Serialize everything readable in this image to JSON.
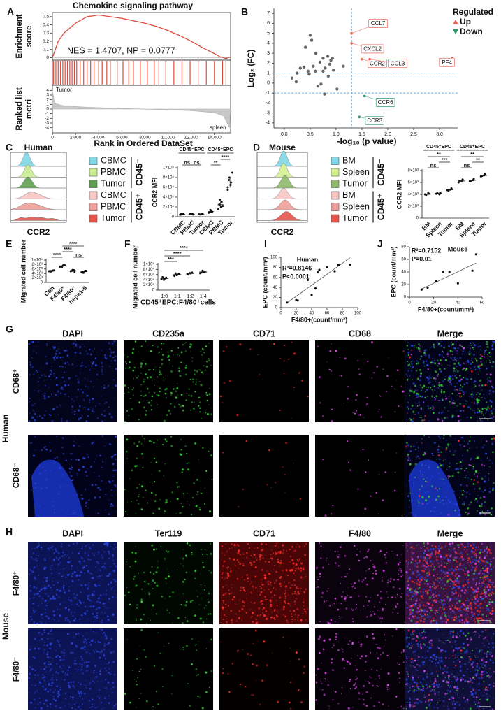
{
  "chart_data": [
    {
      "type": "gsea",
      "panel": "A",
      "title": "Chemokine signaling pathway",
      "ylabel": [
        "Enrichment",
        "score"
      ],
      "ylabel2": [
        "Ranked list",
        "metri"
      ],
      "xlabel": "Rank in Ordered DataSet",
      "annotation": "NES = 1.4707, NP = 0.0777",
      "color": "#e04a3a",
      "x": [
        0,
        500,
        1000,
        1500,
        2000,
        3000,
        4000,
        5000,
        6000,
        7000,
        8000,
        9000,
        10000,
        11000,
        12000,
        13000,
        14000,
        14500,
        15000,
        15400
      ],
      "values": [
        0,
        0.2,
        0.3,
        0.36,
        0.42,
        0.5,
        0.52,
        0.5,
        0.48,
        0.45,
        0.42,
        0.38,
        0.33,
        0.27,
        0.2,
        0.12,
        0.05,
        0.01,
        -0.01,
        0.01
      ],
      "hits": [
        100,
        300,
        500,
        700,
        900,
        1100,
        1300,
        1500,
        1700,
        1900,
        2100,
        2400,
        2700,
        3000,
        3300,
        3600,
        4000,
        4300,
        4700,
        5000,
        5600,
        6100,
        6600,
        7000,
        7600,
        8200,
        8800,
        9200,
        9800,
        10500,
        11200,
        11900,
        12600,
        13300,
        14000,
        14700,
        15000
      ],
      "metric_x": [
        0,
        200,
        1000,
        3000,
        6000,
        9000,
        12000,
        14000,
        14800,
        15300,
        15400
      ],
      "metric": [
        4,
        1.2,
        0.7,
        0.4,
        0.15,
        -0.1,
        -0.35,
        -0.8,
        -1.5,
        -4,
        0
      ],
      "top_label": "Tumor",
      "bottom_label": "spleen",
      "xlim": [
        0,
        15400
      ],
      "xticks": [
        0,
        {
          "value": 2000,
          "label": "2,000"
        },
        {
          "value": 4000,
          "label": "4,000"
        },
        {
          "value": 6000,
          "label": "6,000"
        },
        {
          "value": 8000,
          "label": "8,000"
        },
        {
          "value": 10000,
          "label": "10,000"
        },
        {
          "value": 12000,
          "label": "12,000"
        },
        {
          "value": 14000,
          "label": "14,000"
        }
      ],
      "ylim": [
        -0.03,
        0.55
      ],
      "yticks": [
        0,
        0.1,
        0.2,
        0.3,
        0.4,
        0.5
      ],
      "y2lim": [
        -4.8,
        4.8
      ],
      "y2ticks": [
        4,
        3,
        2,
        1,
        0,
        -1,
        -2,
        -3,
        -4
      ]
    },
    {
      "type": "volcano",
      "panel": "B",
      "xlabel": "-log₁₀ (p value)",
      "ylabel": "Log₂ (FC)",
      "legend_title": "Regulated",
      "xlim": [
        -0.2,
        3.35
      ],
      "xticks": [
        {
          "value": 0,
          "label": "0.0"
        },
        0.5,
        {
          "value": 1,
          "label": "1.0"
        },
        1.5,
        {
          "value": 2,
          "label": "2.0"
        },
        2.5,
        {
          "value": 3,
          "label": "3.0"
        }
      ],
      "ylim": [
        -4.5,
        7.5
      ],
      "yticks": [
        -4,
        -3,
        -2,
        -1,
        0,
        1,
        2,
        3,
        4,
        5,
        6,
        7
      ],
      "vline": 1.3,
      "hlines": [
        1,
        -1
      ],
      "other": {
        "color": "#666666",
        "x": [
          0.15,
          0.23,
          0.25,
          0.41,
          0.5,
          0.53,
          0.31,
          0.38,
          0.46,
          0.56,
          0.61,
          0.69,
          0.75,
          0.79,
          0.88,
          0.85,
          0.71,
          0.65,
          0.78,
          0.9,
          0.84,
          0.93,
          0.95,
          0.6,
          0.48,
          1.14,
          0.75,
          1.02
        ],
        "y": [
          0.5,
          0.13,
          1.0,
          3.6,
          4.8,
          4.3,
          1.5,
          1.6,
          1.2,
          1.7,
          3.0,
          2.1,
          2.5,
          1.5,
          1.9,
          0.7,
          -0.1,
          -0.3,
          -1.1,
          2.3,
          2.7,
          2.5,
          1.3,
          1.2,
          0.9,
          1.7,
          1.2,
          -0.6
        ]
      },
      "series": [
        {
          "name": "Up",
          "color": "#e8675a",
          "x": [
            1.3,
            1.3,
            1.5,
            1.65,
            3.25
          ],
          "y": [
            5.0,
            4.0,
            2.4,
            2.4,
            2.5
          ],
          "labels": [
            "CCL7",
            "CXCL2",
            "CCR2",
            "CCL3",
            "PF4"
          ]
        },
        {
          "name": "Down",
          "color": "#2e9a6a",
          "x": [
            1.55,
            1.45
          ],
          "y": [
            -1.3,
            -3.4
          ],
          "labels": [
            "CCR6",
            "CCR3"
          ]
        }
      ]
    },
    {
      "type": "ridge",
      "panel": "C",
      "title": "Human",
      "xlabel": "CCR2",
      "brackets": [
        "CD45⁻",
        "CD45⁺"
      ],
      "legend": [
        {
          "name": "CBMC",
          "color": "#7fd6e6"
        },
        {
          "name": "PBMC",
          "color": "#c8ec8f"
        },
        {
          "name": "Tumor",
          "color": "#5e9e50"
        },
        {
          "name": "CBMC",
          "color": "#f6c7c3"
        },
        {
          "name": "PBMC",
          "color": "#f0a09a"
        },
        {
          "name": "Tumor",
          "color": "#e5534b"
        }
      ]
    },
    {
      "type": "dot",
      "ylabel": "CCR2 MFI",
      "group_labels": [
        "CD45⁻EPC",
        "CD45⁺EPC"
      ],
      "categories": [
        "CBMC",
        "PBMC",
        "Tumor",
        "CBMC",
        "PBMC",
        "Tumor"
      ],
      "values": [
        [
          4000,
          5000,
          6000,
          5500,
          4500
        ],
        [
          5000,
          6000,
          4500,
          5500
        ],
        [
          5000,
          6000,
          5500,
          4500
        ],
        [
          8000,
          12000,
          10000,
          9000,
          14000
        ],
        [
          15000,
          20000,
          30000,
          25000,
          35000,
          22000
        ],
        [
          55000,
          65000,
          70000,
          75000,
          80000,
          90000,
          60000
        ]
      ],
      "sig": [
        "ns",
        "ns",
        "**",
        "****"
      ],
      "ylim": [
        0,
        100000
      ],
      "yticks": [
        0,
        {
          "value": 20000,
          "label": "2×10⁴"
        },
        {
          "value": 40000,
          "label": "4×10⁴"
        },
        {
          "value": 60000,
          "label": "6×10⁴"
        },
        {
          "value": 80000,
          "label": "8×10⁴"
        },
        {
          "value": 100000,
          "label": "1×10⁵"
        }
      ]
    },
    {
      "type": "ridge",
      "panel": "D",
      "title": "Mouse",
      "xlabel": "CCR2",
      "brackets": [
        "CD45⁻",
        "CD45⁺"
      ],
      "legend": [
        {
          "name": "BM",
          "color": "#7fd6e6"
        },
        {
          "name": "Spleen",
          "color": "#d4f08f"
        },
        {
          "name": "Tumor",
          "color": "#8fb86c"
        },
        {
          "name": "BM",
          "color": "#f6c7c3"
        },
        {
          "name": "Spleen",
          "color": "#f0a09a"
        },
        {
          "name": "Tumor",
          "color": "#e5534b"
        }
      ]
    },
    {
      "type": "dot",
      "ylabel": "CCR2 MFI",
      "group_labels": [
        "CD45⁻EPC",
        "CD45⁺EPC"
      ],
      "categories": [
        "BM",
        "Spleen",
        "Tumor",
        "BM",
        "Spleen",
        "Tumor"
      ],
      "values": [
        [
          4000,
          4200,
          4100,
          3900
        ],
        [
          4100,
          4000,
          4300,
          4200
        ],
        [
          4700,
          4800,
          5000,
          4600
        ],
        [
          6000,
          6300,
          6500,
          6200
        ],
        [
          6200,
          6400,
          6600,
          6300
        ],
        [
          7000,
          7200,
          7400,
          7100
        ]
      ],
      "sig": [
        "ns",
        "**",
        "***",
        "ns",
        "**",
        "**"
      ],
      "ylim": [
        0,
        8000
      ],
      "yticks": [
        0,
        {
          "value": 2000,
          "label": "2×10³"
        },
        {
          "value": 4000,
          "label": "4×10³"
        },
        {
          "value": 6000,
          "label": "6×10³"
        },
        {
          "value": 8000,
          "label": "8×10³"
        }
      ]
    },
    {
      "type": "dot",
      "panel": "E",
      "ylabel": "Migrated cell number",
      "categories": [
        "Con",
        "F4/80⁺",
        "F4/80⁻",
        "hepa1-6"
      ],
      "values": [
        [
          5000,
          5200,
          5300,
          5100,
          4900,
          5400
        ],
        [
          7000,
          7500,
          8000,
          7200,
          6800,
          7600
        ],
        [
          5000,
          5500,
          4800,
          5200,
          5600
        ],
        [
          4500,
          5000,
          5200,
          4800,
          4300,
          5100
        ]
      ],
      "sig": [
        "****",
        "****",
        "****",
        "ns"
      ],
      "ylim": [
        0,
        10000
      ],
      "yticks": [
        0,
        {
          "value": 2000,
          "label": "2×10³"
        },
        {
          "value": 4000,
          "label": "4×10³"
        },
        {
          "value": 6000,
          "label": "6×10³"
        },
        {
          "value": 8000,
          "label": "8×10³"
        },
        {
          "value": 10000,
          "label": "1×10⁴"
        }
      ]
    },
    {
      "type": "dot",
      "panel": "F",
      "ylabel": "Migrated cell number",
      "xlabel": "CD45⁺EPC:F4/80⁺cells",
      "categories": [
        "1:0",
        "1:1",
        "1:2",
        "1:4"
      ],
      "values": [
        [
          42000,
          45000,
          48000,
          50000,
          40000
        ],
        [
          55000,
          60000,
          62000,
          65000,
          58000
        ],
        [
          62000,
          65000,
          68000,
          60000,
          66000
        ],
        [
          65000,
          70000,
          72000,
          68000,
          75000
        ]
      ],
      "sig": [
        "***",
        "****",
        "****"
      ],
      "ylim": [
        0,
        100000
      ],
      "yticks": [
        0,
        {
          "value": 20000,
          "label": "2×10⁴"
        },
        {
          "value": 40000,
          "label": "4×10⁴"
        },
        {
          "value": 60000,
          "label": "6×10⁴"
        },
        {
          "value": 80000,
          "label": "8×10⁴"
        },
        {
          "value": 100000,
          "label": "1×10⁵"
        }
      ]
    },
    {
      "type": "regression",
      "panel": "I",
      "title": "Human",
      "stat1": "R²=0.8146",
      "stat2": "P<0.0001",
      "xlabel": "F4/80+(count/mm²)",
      "ylabel": "EPC (count/mm²)",
      "x": [
        8,
        20,
        22,
        35,
        40,
        45,
        48,
        50,
        60,
        70,
        75,
        90
      ],
      "y": [
        10,
        15,
        14,
        55,
        25,
        38,
        70,
        75,
        80,
        72,
        85,
        85
      ],
      "xlim": [
        0,
        100
      ],
      "xticks": [
        0,
        20,
        40,
        60,
        80,
        100
      ],
      "ylim": [
        0,
        100
      ],
      "yticks": [
        0,
        20,
        40,
        60,
        80,
        100
      ]
    },
    {
      "type": "regression",
      "panel": "J",
      "title": "Mouse",
      "stat1": "R²=0.7152",
      "stat2": "P=0.01",
      "xlabel": "F4/80+(count/mm²)",
      "ylabel": "EPC (count/mm²)",
      "x": [
        10,
        15,
        22,
        28,
        33,
        40,
        52,
        55
      ],
      "y": [
        12,
        15,
        25,
        40,
        40,
        22,
        42,
        68
      ],
      "xlim": [
        0,
        60
      ],
      "xticks": [
        0,
        20,
        40,
        60
      ],
      "ylim": [
        0,
        80
      ],
      "yticks": [
        0,
        20,
        40,
        60,
        80
      ]
    }
  ],
  "microscopy": [
    {
      "panel": "G",
      "species": "Human",
      "scale_bar": "100 μm",
      "rows": [
        "CD68⁺",
        "CD68⁻"
      ],
      "channels": [
        {
          "name": "DAPI",
          "color": "#3b5fd0"
        },
        {
          "name": "CD235a",
          "color": "#2fae2f"
        },
        {
          "name": "CD71",
          "color": "#e01818"
        },
        {
          "name": "CD68",
          "color": "#9a3cc6"
        },
        {
          "name": "Merge",
          "color": "#111111"
        }
      ]
    },
    {
      "panel": "H",
      "species": "Mouse",
      "scale_bar": "100 μm",
      "rows": [
        "F4/80⁺",
        "F4/80⁻"
      ],
      "channels": [
        {
          "name": "DAPI",
          "color": "#3b5fd0"
        },
        {
          "name": "Ter119",
          "color": "#2fae2f"
        },
        {
          "name": "CD71",
          "color": "#e01818"
        },
        {
          "name": "F4/80",
          "color": "#a040c0"
        },
        {
          "name": "Merge",
          "color": "#111111"
        }
      ]
    }
  ]
}
